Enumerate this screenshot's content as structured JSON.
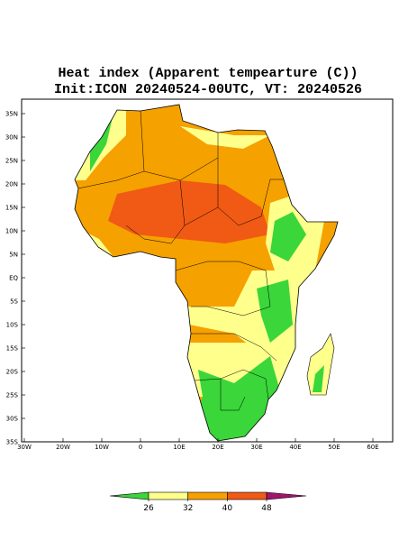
{
  "title": "Heat index (Apparent tempearture (C))",
  "subtitle": "Init:ICON 20240524-00UTC, VT: 20240526",
  "map": {
    "lat_ticks": [
      {
        "value": 35,
        "label": "35N"
      },
      {
        "value": 30,
        "label": "30N"
      },
      {
        "value": 25,
        "label": "25N"
      },
      {
        "value": 20,
        "label": "20N"
      },
      {
        "value": 15,
        "label": "15N"
      },
      {
        "value": 10,
        "label": "10N"
      },
      {
        "value": 5,
        "label": "5N"
      },
      {
        "value": 0,
        "label": "EQ"
      },
      {
        "value": -5,
        "label": "5S"
      },
      {
        "value": -10,
        "label": "10S"
      },
      {
        "value": -15,
        "label": "15S"
      },
      {
        "value": -20,
        "label": "20S"
      },
      {
        "value": -25,
        "label": "25S"
      },
      {
        "value": -30,
        "label": "30S"
      },
      {
        "value": -35,
        "label": "35S"
      }
    ],
    "lon_ticks": [
      {
        "value": -30,
        "label": "30W"
      },
      {
        "value": -20,
        "label": "20W"
      },
      {
        "value": -10,
        "label": "10W"
      },
      {
        "value": 0,
        "label": "0"
      },
      {
        "value": 10,
        "label": "10E"
      },
      {
        "value": 20,
        "label": "20E"
      },
      {
        "value": 30,
        "label": "30E"
      },
      {
        "value": 40,
        "label": "40E"
      },
      {
        "value": 50,
        "label": "50E"
      },
      {
        "value": 60,
        "label": "60E"
      }
    ]
  },
  "colorbar": {
    "ticks": [
      26,
      32,
      40,
      48
    ],
    "colors": [
      "#3ad63a",
      "#ffff8c",
      "#f5a100",
      "#f05a14",
      "#a0146e"
    ]
  }
}
